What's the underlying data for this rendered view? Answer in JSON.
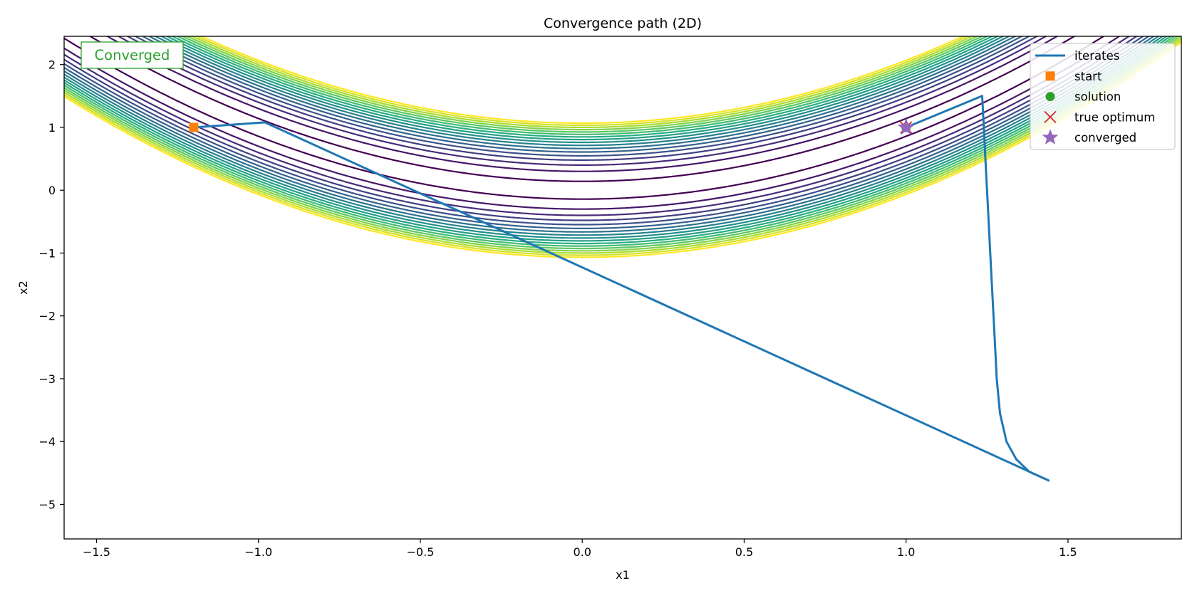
{
  "chart_data": {
    "type": "line",
    "title": "Convergence path (2D)",
    "xlabel": "x1",
    "ylabel": "x2",
    "xlim": [
      -1.6,
      1.85
    ],
    "ylim": [
      -5.55,
      2.45
    ],
    "xticks": [
      -1.5,
      -1.0,
      -0.5,
      0.0,
      0.5,
      1.0,
      1.5
    ],
    "xtick_labels": [
      "−1.5",
      "−1.0",
      "−0.5",
      "0.0",
      "0.5",
      "1.0",
      "1.5"
    ],
    "yticks": [
      2,
      1,
      0,
      -1,
      -2,
      -3,
      -4,
      -5
    ],
    "ytick_labels": [
      "2",
      "1",
      "0",
      "−1",
      "−2",
      "−3",
      "−4",
      "−5"
    ],
    "grid": false,
    "legend_position": "top-right",
    "status_text": "Converged",
    "status_color": "#2ca02c",
    "contour": {
      "function": "rosenbrock",
      "levels": [
        2,
        9,
        16,
        23,
        30,
        37,
        44,
        51,
        58,
        65,
        72,
        79,
        86,
        93,
        100,
        107,
        114
      ],
      "colormap": "viridis"
    },
    "series": [
      {
        "name": "iterates",
        "kind": "line",
        "color": "#1f77b4",
        "x": [
          -1.2,
          -0.98,
          1.44,
          1.38,
          1.34,
          1.31,
          1.29,
          1.28,
          1.275,
          1.27,
          1.265,
          1.26,
          1.255,
          1.25,
          1.245,
          1.24,
          1.235,
          1.0
        ],
        "y": [
          1.0,
          1.08,
          -4.62,
          -4.48,
          -4.28,
          -4.0,
          -3.55,
          -3.0,
          -2.5,
          -2.0,
          -1.5,
          -1.0,
          -0.5,
          0.0,
          0.5,
          1.0,
          1.5,
          1.0
        ]
      },
      {
        "name": "start",
        "kind": "marker",
        "marker": "square",
        "color": "#ff7f0e",
        "x": [
          -1.2
        ],
        "y": [
          1.0
        ]
      },
      {
        "name": "solution",
        "kind": "marker",
        "marker": "circle",
        "color": "#2ca02c",
        "x": [
          1.0
        ],
        "y": [
          1.0
        ]
      },
      {
        "name": "true optimum",
        "kind": "marker",
        "marker": "x",
        "color": "#d62728",
        "x": [
          1.0
        ],
        "y": [
          1.0
        ]
      },
      {
        "name": "converged",
        "kind": "marker",
        "marker": "star",
        "color": "#9467bd",
        "x": [
          1.0
        ],
        "y": [
          1.0
        ]
      }
    ]
  }
}
